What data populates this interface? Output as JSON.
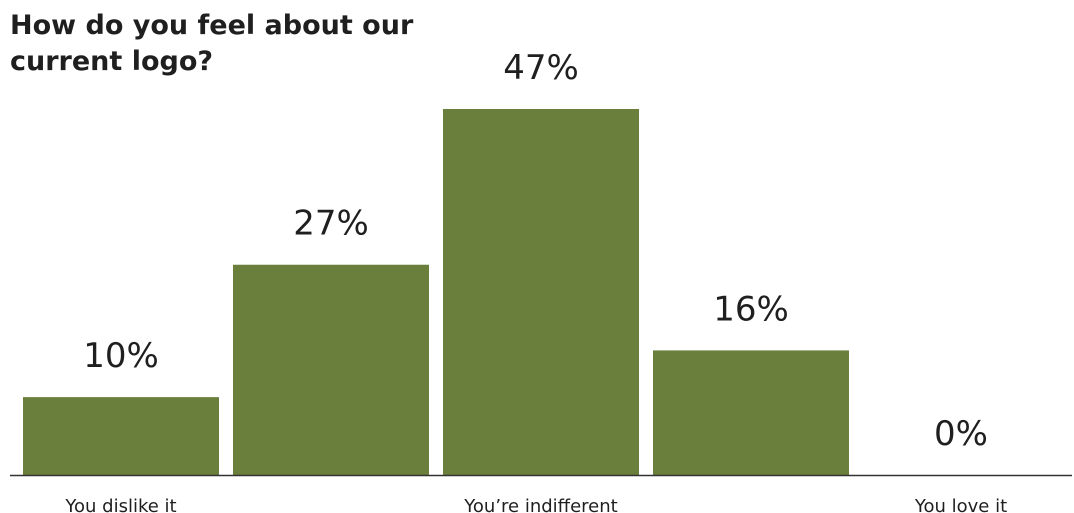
{
  "chart_data": {
    "type": "bar",
    "title": "How do you feel about our current logo?",
    "categories": [
      "You dislike it",
      "",
      "You’re indifferent",
      "",
      "You love it"
    ],
    "values": [
      10,
      27,
      47,
      16,
      0
    ],
    "value_labels": [
      "10%",
      "27%",
      "47%",
      "16%",
      "0%"
    ],
    "xlabel": "",
    "ylabel": "",
    "ylim": [
      0,
      47
    ],
    "grid": false,
    "legend": "none",
    "bar_color": "#6a7f3b",
    "axis_color": "#333333"
  }
}
